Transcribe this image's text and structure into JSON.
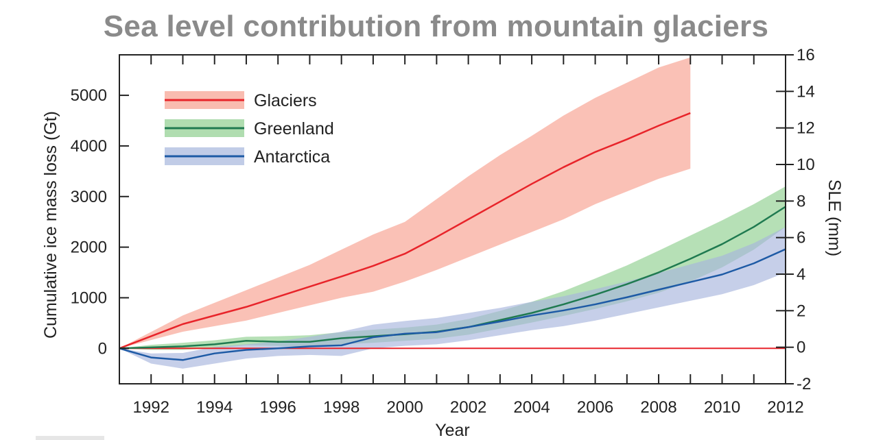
{
  "title": "Sea level contribution from mountain glaciers",
  "chart_data": {
    "type": "area",
    "xlabel": "Year",
    "ylabel": "Cumulative ice mass loss (Gt)",
    "y2label": "SLE (mm)",
    "xlim": [
      1991,
      2012
    ],
    "ylim": [
      -700,
      5800
    ],
    "y2lim": [
      -2,
      16
    ],
    "x_ticks": [
      1992,
      1994,
      1996,
      1998,
      2000,
      2002,
      2004,
      2006,
      2008,
      2010,
      2012
    ],
    "y_ticks": [
      0,
      1000,
      2000,
      3000,
      4000,
      5000
    ],
    "y2_ticks": [
      -2,
      0,
      2,
      4,
      6,
      8,
      10,
      12,
      14,
      16
    ],
    "grid": false,
    "legend_position": "top-left",
    "zero_line_color": "#e8242a",
    "series": [
      {
        "name": "Glaciers",
        "color": "#e8242a",
        "band_color": "#f7a08f",
        "x": [
          1991,
          1993,
          1995,
          1997,
          1998,
          1999,
          2000,
          2001,
          2002,
          2003,
          2004,
          2005,
          2006,
          2007,
          2008,
          2009
        ],
        "values": [
          0,
          480,
          820,
          1220,
          1420,
          1630,
          1870,
          2200,
          2550,
          2900,
          3250,
          3580,
          3880,
          4130,
          4400,
          4650
        ],
        "upper": [
          0,
          650,
          1150,
          1650,
          1950,
          2250,
          2500,
          2950,
          3400,
          3820,
          4200,
          4600,
          4950,
          5250,
          5550,
          5750
        ],
        "lower": [
          0,
          330,
          550,
          850,
          1000,
          1120,
          1320,
          1550,
          1800,
          2050,
          2300,
          2550,
          2850,
          3100,
          3350,
          3550
        ]
      },
      {
        "name": "Greenland",
        "color": "#1f7a50",
        "band_color": "#8fcf8f",
        "x": [
          1991,
          1992,
          1993,
          1994,
          1995,
          1996,
          1997,
          1998,
          1999,
          2000,
          2001,
          2002,
          2003,
          2004,
          2005,
          2006,
          2007,
          2008,
          2009,
          2010,
          2011,
          2012
        ],
        "values": [
          0,
          20,
          40,
          80,
          150,
          130,
          130,
          200,
          240,
          280,
          330,
          420,
          560,
          700,
          870,
          1060,
          1270,
          1500,
          1770,
          2060,
          2400,
          2800
        ],
        "upper": [
          0,
          70,
          110,
          160,
          230,
          240,
          260,
          320,
          370,
          410,
          470,
          580,
          740,
          920,
          1130,
          1380,
          1640,
          1930,
          2230,
          2530,
          2850,
          3200
        ],
        "lower": [
          0,
          -30,
          -30,
          0,
          60,
          50,
          30,
          80,
          110,
          150,
          190,
          270,
          390,
          510,
          640,
          780,
          930,
          1100,
          1320,
          1600,
          1950,
          2400
        ]
      },
      {
        "name": "Antarctica",
        "color": "#1d5aa5",
        "band_color": "#a7b6dd",
        "x": [
          1991,
          1992,
          1993,
          1994,
          1995,
          1996,
          1997,
          1998,
          1999,
          2000,
          2001,
          2002,
          2003,
          2004,
          2005,
          2006,
          2007,
          2008,
          2009,
          2010,
          2011,
          2012
        ],
        "values": [
          0,
          -180,
          -230,
          -100,
          -30,
          0,
          40,
          60,
          220,
          290,
          320,
          420,
          530,
          650,
          750,
          870,
          1010,
          1160,
          1310,
          1460,
          1680,
          1960
        ],
        "upper": [
          0,
          -100,
          -90,
          30,
          80,
          140,
          230,
          330,
          470,
          540,
          600,
          700,
          800,
          920,
          1030,
          1170,
          1320,
          1490,
          1660,
          1830,
          2080,
          2400
        ],
        "lower": [
          0,
          -300,
          -400,
          -300,
          -200,
          -150,
          -130,
          -150,
          0,
          50,
          80,
          160,
          260,
          360,
          440,
          550,
          680,
          810,
          940,
          1070,
          1250,
          1500
        ]
      }
    ]
  }
}
